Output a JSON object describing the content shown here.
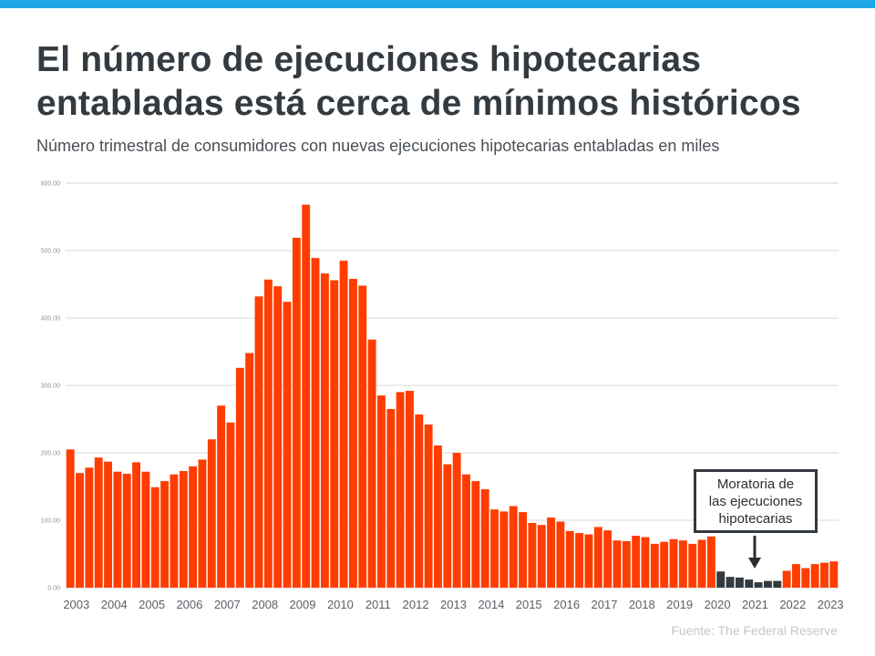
{
  "header": {
    "title_line1": "El número de ejecuciones hipotecarias",
    "title_line2": "entabladas está cerca de mínimos históricos",
    "subtitle": "Número trimestral de consumidores con nuevas ejecuciones hipotecarias entabladas en miles"
  },
  "source": "Fuente: The Federal Reserve",
  "callout": {
    "line1": "Moratoria de",
    "line2": "las ejecuciones",
    "line3": "hipotecarias"
  },
  "colors": {
    "accent_bar": "#1ea7e6",
    "bar_default": "#ff3d00",
    "bar_moratorium": "#333a40"
  },
  "chart_data": {
    "type": "bar",
    "title": "",
    "ylim": [
      0,
      600
    ],
    "y_ticks": [
      "0.00",
      "100.00",
      "200.00",
      "300.00",
      "400.00",
      "500.00",
      "600.00"
    ],
    "grid": true,
    "x_tick_labels": [
      "2003",
      "2004",
      "2005",
      "2006",
      "2007",
      "2008",
      "2009",
      "2010",
      "2011",
      "2012",
      "2013",
      "2014",
      "2015",
      "2016",
      "2017",
      "2018",
      "2019",
      "2020",
      "2021",
      "2022",
      "2023"
    ],
    "values": [
      205,
      170,
      178,
      193,
      187,
      172,
      169,
      186,
      172,
      149,
      158,
      168,
      173,
      180,
      190,
      220,
      270,
      245,
      326,
      348,
      432,
      457,
      447,
      424,
      519,
      568,
      489,
      466,
      456,
      485,
      458,
      448,
      368,
      285,
      265,
      290,
      292,
      257,
      242,
      211,
      183,
      200,
      168,
      158,
      146,
      116,
      113,
      121,
      112,
      96,
      93,
      104,
      98,
      84,
      81,
      79,
      90,
      85,
      70,
      69,
      77,
      75,
      65,
      68,
      72,
      70,
      65,
      71,
      76,
      24,
      16,
      15,
      12,
      8,
      10,
      10,
      25,
      35,
      29,
      35,
      37,
      39
    ],
    "moratorium_range": [
      69,
      75
    ]
  }
}
